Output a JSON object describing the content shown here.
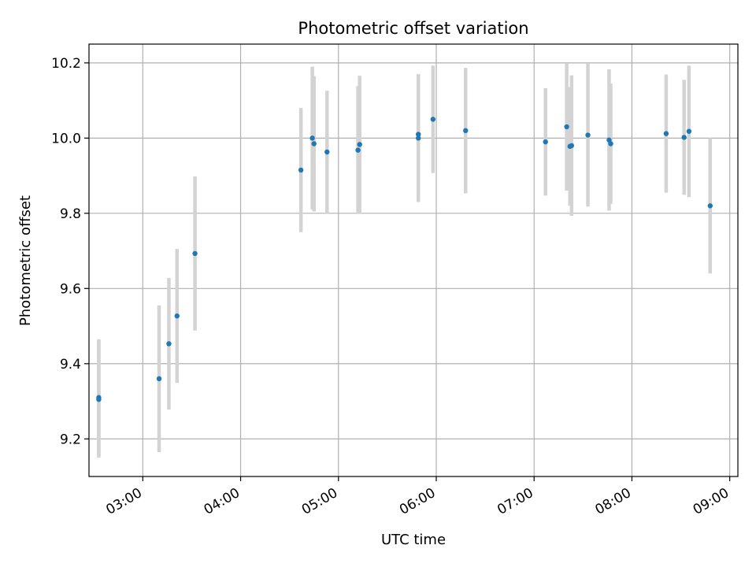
{
  "chart_data": {
    "type": "scatter",
    "title": "Photometric offset variation",
    "xlabel": "UTC time",
    "ylabel": "Photometric offset",
    "grid": true,
    "xlim": [
      "02:27",
      "09:05"
    ],
    "ylim": [
      9.1,
      10.25
    ],
    "x_tick_labels": [
      "03:00",
      "04:00",
      "05:00",
      "06:00",
      "07:00",
      "08:00",
      "09:00"
    ],
    "y_tick_labels": [
      "9.2",
      "9.4",
      "9.6",
      "9.8",
      "10.0",
      "10.2"
    ],
    "colors": {
      "point": "#1f77b4",
      "errorbar": "#d3d3d3",
      "grid": "#b0b0b0"
    },
    "points": [
      {
        "x": "02:33",
        "y": 9.31,
        "err": 0.155
      },
      {
        "x": "02:33",
        "y": 9.305,
        "err": 0.155
      },
      {
        "x": "03:10",
        "y": 9.36,
        "err": 0.195
      },
      {
        "x": "03:16",
        "y": 9.453,
        "err": 0.175
      },
      {
        "x": "03:21",
        "y": 9.527,
        "err": 0.178
      },
      {
        "x": "03:32",
        "y": 9.693,
        "err": 0.205
      },
      {
        "x": "04:37",
        "y": 9.915,
        "err": 0.165
      },
      {
        "x": "04:44",
        "y": 10.0,
        "err": 0.19
      },
      {
        "x": "04:45",
        "y": 9.985,
        "err": 0.18
      },
      {
        "x": "04:53",
        "y": 9.963,
        "err": 0.163
      },
      {
        "x": "05:12",
        "y": 9.968,
        "err": 0.17
      },
      {
        "x": "05:13",
        "y": 9.983,
        "err": 0.183
      },
      {
        "x": "05:49",
        "y": 10.01,
        "err": 0.16
      },
      {
        "x": "05:49",
        "y": 10.0,
        "err": 0.17
      },
      {
        "x": "05:58",
        "y": 10.05,
        "err": 0.143
      },
      {
        "x": "06:18",
        "y": 10.02,
        "err": 0.167
      },
      {
        "x": "07:07",
        "y": 9.99,
        "err": 0.143
      },
      {
        "x": "07:20",
        "y": 10.03,
        "err": 0.17
      },
      {
        "x": "07:22",
        "y": 9.978,
        "err": 0.158
      },
      {
        "x": "07:23",
        "y": 9.98,
        "err": 0.187
      },
      {
        "x": "07:33",
        "y": 10.008,
        "err": 0.19
      },
      {
        "x": "07:46",
        "y": 9.995,
        "err": 0.188
      },
      {
        "x": "07:47",
        "y": 9.985,
        "err": 0.16
      },
      {
        "x": "08:21",
        "y": 10.012,
        "err": 0.157
      },
      {
        "x": "08:32",
        "y": 10.002,
        "err": 0.153
      },
      {
        "x": "08:35",
        "y": 10.018,
        "err": 0.175
      },
      {
        "x": "08:48",
        "y": 9.82,
        "err": 0.18
      }
    ]
  }
}
